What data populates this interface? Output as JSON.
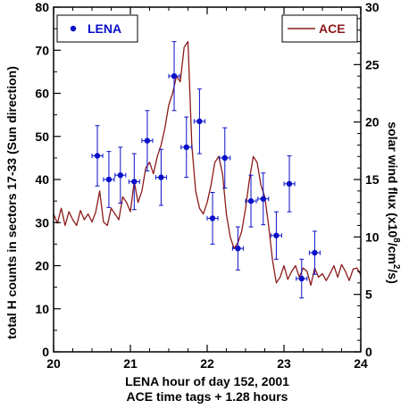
{
  "chart_data": {
    "type": "scatter",
    "xlabel": "LENA hour of day 152, 2001",
    "xlabel2": "ACE time tags + 1.28 hours",
    "ylabel": "total H counts in sectors 17-33 (Sun direction)",
    "ylabel_right_prefix": "solar wind flux (x10",
    "ylabel_right_exp1": "8",
    "ylabel_right_mid": "/cm",
    "ylabel_right_exp2": "2",
    "ylabel_right_suffix": "/s)",
    "xlim": [
      20,
      24
    ],
    "ylim": [
      0,
      80
    ],
    "ylim_right": [
      0,
      30
    ],
    "x_ticks": [
      "20",
      "21",
      "22",
      "23",
      "24"
    ],
    "y_ticks": [
      "0",
      "10",
      "20",
      "30",
      "40",
      "50",
      "60",
      "70",
      "80"
    ],
    "y_right_ticks": [
      "0",
      "5",
      "10",
      "15",
      "20",
      "25",
      "30"
    ],
    "legend": [
      {
        "name": "LENA",
        "color": "#0a10c8",
        "marker": "dot"
      },
      {
        "name": "ACE",
        "color": "#8b1a1a",
        "marker": "line"
      }
    ],
    "series": [
      {
        "name": "LENA",
        "axis": "left",
        "color": "#0a10c8",
        "points": [
          {
            "x": 20.57,
            "y": 45.5,
            "xerr": 0.07,
            "yerr": 7.0
          },
          {
            "x": 20.72,
            "y": 40.0,
            "xerr": 0.07,
            "yerr": 6.5
          },
          {
            "x": 20.87,
            "y": 41.0,
            "xerr": 0.07,
            "yerr": 6.5
          },
          {
            "x": 21.05,
            "y": 39.5,
            "xerr": 0.07,
            "yerr": 6.5
          },
          {
            "x": 21.22,
            "y": 49.0,
            "xerr": 0.07,
            "yerr": 7.0
          },
          {
            "x": 21.4,
            "y": 40.5,
            "xerr": 0.07,
            "yerr": 6.5
          },
          {
            "x": 21.57,
            "y": 64.0,
            "xerr": 0.07,
            "yerr": 8.0
          },
          {
            "x": 21.73,
            "y": 47.5,
            "xerr": 0.07,
            "yerr": 7.0
          },
          {
            "x": 21.9,
            "y": 53.5,
            "xerr": 0.07,
            "yerr": 7.5
          },
          {
            "x": 22.07,
            "y": 31.0,
            "xerr": 0.07,
            "yerr": 6.0
          },
          {
            "x": 22.23,
            "y": 45.0,
            "xerr": 0.07,
            "yerr": 7.0
          },
          {
            "x": 22.4,
            "y": 24.0,
            "xerr": 0.07,
            "yerr": 5.0
          },
          {
            "x": 22.57,
            "y": 35.0,
            "xerr": 0.07,
            "yerr": 6.0
          },
          {
            "x": 22.73,
            "y": 35.5,
            "xerr": 0.07,
            "yerr": 6.0
          },
          {
            "x": 22.9,
            "y": 27.0,
            "xerr": 0.07,
            "yerr": 5.5
          },
          {
            "x": 23.07,
            "y": 39.0,
            "xerr": 0.07,
            "yerr": 6.5
          },
          {
            "x": 23.23,
            "y": 17.0,
            "xerr": 0.07,
            "yerr": 4.5
          },
          {
            "x": 23.4,
            "y": 23.0,
            "xerr": 0.07,
            "yerr": 5.0
          }
        ]
      },
      {
        "name": "ACE",
        "axis": "right",
        "color": "#8b1a1a",
        "x": [
          20.0,
          20.05,
          20.1,
          20.15,
          20.2,
          20.25,
          20.3,
          20.35,
          20.4,
          20.45,
          20.5,
          20.55,
          20.6,
          20.65,
          20.7,
          20.75,
          20.8,
          20.85,
          20.9,
          20.95,
          21.0,
          21.05,
          21.1,
          21.15,
          21.2,
          21.25,
          21.3,
          21.35,
          21.4,
          21.45,
          21.5,
          21.55,
          21.6,
          21.65,
          21.7,
          21.75,
          21.8,
          21.85,
          21.9,
          21.95,
          22.0,
          22.05,
          22.1,
          22.15,
          22.2,
          22.25,
          22.3,
          22.35,
          22.4,
          22.45,
          22.5,
          22.55,
          22.6,
          22.65,
          22.7,
          22.75,
          22.8,
          22.85,
          22.9,
          22.95,
          23.0,
          23.05,
          23.1,
          23.15,
          23.2,
          23.25,
          23.3,
          23.35,
          23.4,
          23.45,
          23.5,
          23.55,
          23.6,
          23.65,
          23.7,
          23.75,
          23.8,
          23.85,
          23.9,
          23.95,
          24.0
        ],
        "y": [
          12.0,
          11.2,
          12.5,
          11.0,
          12.2,
          11.5,
          11.0,
          12.3,
          11.5,
          12.0,
          11.3,
          12.2,
          14.0,
          11.3,
          11.0,
          12.5,
          12.0,
          11.5,
          13.5,
          13.0,
          12.2,
          14.8,
          13.0,
          14.0,
          16.0,
          16.5,
          15.5,
          17.0,
          18.0,
          19.5,
          21.5,
          22.5,
          24.0,
          23.5,
          26.5,
          27.0,
          18.0,
          14.0,
          12.5,
          12.0,
          13.0,
          14.5,
          16.5,
          17.0,
          15.5,
          12.0,
          10.0,
          9.0,
          9.5,
          10.5,
          12.5,
          15.0,
          17.0,
          16.5,
          14.5,
          13.5,
          11.0,
          8.0,
          6.0,
          6.5,
          7.5,
          6.3,
          7.0,
          7.5,
          6.5,
          7.3,
          7.0,
          5.8,
          7.3,
          6.5,
          6.8,
          6.2,
          6.8,
          7.5,
          6.5,
          7.6,
          7.0,
          6.2,
          7.2,
          7.3,
          6.7
        ]
      }
    ]
  }
}
